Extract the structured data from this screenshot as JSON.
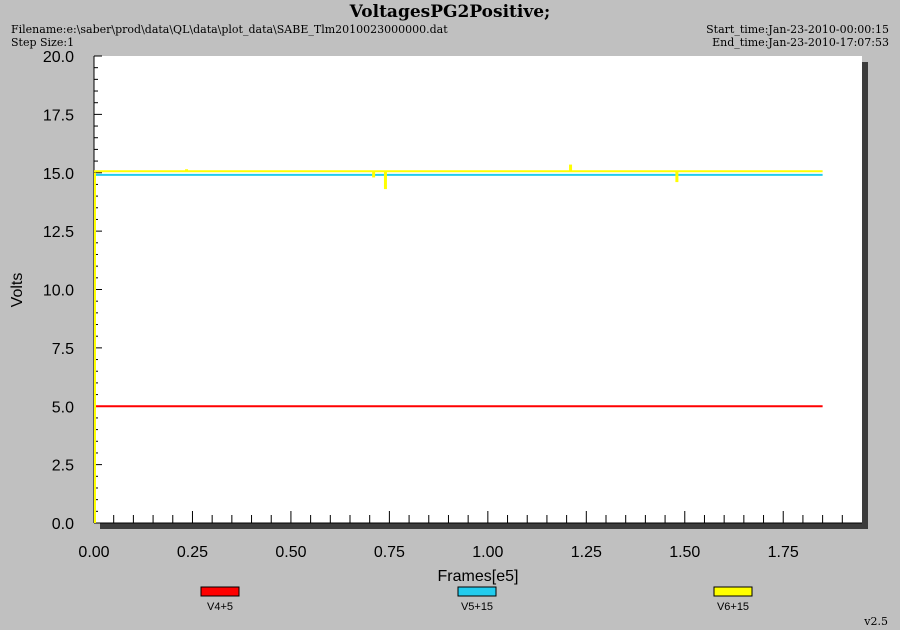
{
  "header": {
    "title": "VoltagesPG2Positive;",
    "filename": "Filename:e:\\saber\\prod\\data\\QL\\data\\plot_data\\SABE_Tlm2010023000000.dat",
    "step_size": "Step Size:1",
    "start_time": "Start_time:Jan-23-2010-00:00:15",
    "end_time": "End_time:Jan-23-2010-17:07:53"
  },
  "footer": {
    "version": "v2.5"
  },
  "colors": {
    "background": "#c0c0c0",
    "plot_bg": "#ffffff",
    "shadow": "#3c3c3c",
    "v4": "#ff0000",
    "v5": "#22ccee",
    "v6": "#ffff00"
  },
  "chart_data": {
    "type": "line",
    "title": "VoltagesPG2Positive;",
    "xlabel": "Frames[e5]",
    "ylabel": "Volts",
    "xlim": [
      0,
      1.95
    ],
    "ylim": [
      0,
      20
    ],
    "x_ticks": [
      "0.00",
      "0.25",
      "0.50",
      "0.75",
      "1.00",
      "1.25",
      "1.50",
      "1.75"
    ],
    "y_ticks": [
      "0.0",
      "2.5",
      "5.0",
      "7.5",
      "10.0",
      "12.5",
      "15.0",
      "17.5",
      "20.0"
    ],
    "legend_position": "bottom",
    "grid": false,
    "series": [
      {
        "name": "V4+5",
        "color": "#ff0000",
        "x": [
          0,
          1.85
        ],
        "y": [
          5.0,
          5.0
        ]
      },
      {
        "name": "V5+15",
        "color": "#22ccee",
        "x": [
          0,
          1.85
        ],
        "y": [
          14.95,
          14.95
        ]
      },
      {
        "name": "V6+15",
        "color": "#ffff00",
        "x": [
          0,
          1.85
        ],
        "y": [
          15.0,
          15.0
        ]
      }
    ],
    "spikes": [
      {
        "series": "V6+15",
        "x": 0.235,
        "y": 15.15
      },
      {
        "series": "V6+15",
        "x": 0.71,
        "y": 14.8
      },
      {
        "series": "V6+15",
        "x": 0.74,
        "y": 14.3
      },
      {
        "series": "V6+15",
        "x": 1.21,
        "y": 15.35
      },
      {
        "series": "V6+15",
        "x": 1.48,
        "y": 14.6
      }
    ]
  }
}
